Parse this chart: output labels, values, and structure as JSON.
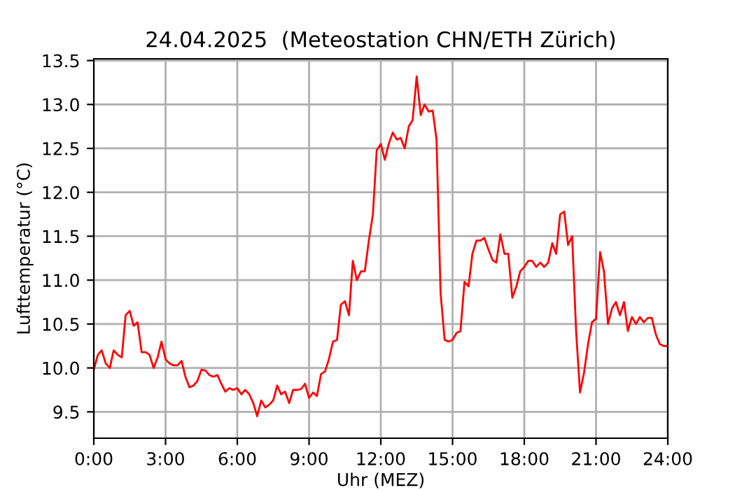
{
  "chart_data": {
    "type": "line",
    "title": "24.04.2025  (Meteostation CHN/ETH Zürich)",
    "xlabel": "Uhr (MEZ)",
    "ylabel": "Lufttemperatur (°C)",
    "x": [
      0,
      0.17,
      0.33,
      0.5,
      0.67,
      0.83,
      1,
      1.17,
      1.33,
      1.5,
      1.67,
      1.83,
      2,
      2.17,
      2.33,
      2.5,
      2.67,
      2.83,
      3,
      3.17,
      3.33,
      3.5,
      3.67,
      3.83,
      4,
      4.17,
      4.33,
      4.5,
      4.67,
      4.83,
      5,
      5.17,
      5.33,
      5.5,
      5.67,
      5.83,
      6,
      6.17,
      6.33,
      6.5,
      6.67,
      6.83,
      7,
      7.17,
      7.33,
      7.5,
      7.67,
      7.83,
      8,
      8.17,
      8.33,
      8.5,
      8.67,
      8.83,
      9,
      9.17,
      9.33,
      9.5,
      9.67,
      9.83,
      10,
      10.17,
      10.33,
      10.5,
      10.67,
      10.83,
      11,
      11.17,
      11.33,
      11.5,
      11.67,
      11.83,
      12,
      12.17,
      12.33,
      12.5,
      12.67,
      12.83,
      13,
      13.17,
      13.33,
      13.5,
      13.67,
      13.83,
      14,
      14.17,
      14.33,
      14.5,
      14.67,
      14.83,
      15,
      15.17,
      15.33,
      15.5,
      15.67,
      15.83,
      16,
      16.17,
      16.33,
      16.5,
      16.67,
      16.83,
      17,
      17.17,
      17.33,
      17.5,
      17.67,
      17.83,
      18,
      18.17,
      18.33,
      18.5,
      18.67,
      18.83,
      19,
      19.17,
      19.33,
      19.5,
      19.67,
      19.83,
      20,
      20.17,
      20.33,
      20.5,
      20.67,
      20.83,
      21,
      21.17,
      21.33,
      21.5,
      21.67,
      21.83,
      22,
      22.17,
      22.33,
      22.5,
      22.67,
      22.83,
      23,
      23.17,
      23.33,
      23.5,
      23.67,
      23.83,
      24
    ],
    "series": [
      {
        "color": "#ff0000",
        "values": [
          9.98,
          10.15,
          10.2,
          10.05,
          10.0,
          10.2,
          10.15,
          10.12,
          10.6,
          10.65,
          10.48,
          10.52,
          10.18,
          10.18,
          10.15,
          10.0,
          10.12,
          10.3,
          10.1,
          10.05,
          10.03,
          10.03,
          10.08,
          9.9,
          9.78,
          9.8,
          9.85,
          9.98,
          9.97,
          9.92,
          9.9,
          9.92,
          9.82,
          9.73,
          9.77,
          9.75,
          9.77,
          9.7,
          9.75,
          9.7,
          9.6,
          9.45,
          9.63,
          9.55,
          9.58,
          9.63,
          9.8,
          9.7,
          9.73,
          9.6,
          9.75,
          9.75,
          9.76,
          9.82,
          9.66,
          9.72,
          9.68,
          9.93,
          9.96,
          10.1,
          10.3,
          10.32,
          10.72,
          10.76,
          10.6,
          11.22,
          11.0,
          11.1,
          11.1,
          11.45,
          11.75,
          12.48,
          12.55,
          12.37,
          12.55,
          12.68,
          12.6,
          12.62,
          12.5,
          12.75,
          12.82,
          13.32,
          12.88,
          13.0,
          12.92,
          12.93,
          12.6,
          10.85,
          10.32,
          10.3,
          10.32,
          10.4,
          10.42,
          10.98,
          10.93,
          11.3,
          11.45,
          11.45,
          11.48,
          11.35,
          11.23,
          11.2,
          11.52,
          11.3,
          11.3,
          10.8,
          10.93,
          11.1,
          11.15,
          11.22,
          11.22,
          11.15,
          11.2,
          11.15,
          11.2,
          11.42,
          11.3,
          11.75,
          11.78,
          11.4,
          11.5,
          10.4,
          9.72,
          9.95,
          10.28,
          10.52,
          10.56,
          11.32,
          11.1,
          10.5,
          10.68,
          10.75,
          10.6,
          10.75,
          10.42,
          10.58,
          10.5,
          10.58,
          10.52,
          10.57,
          10.57,
          10.38,
          10.27,
          10.25,
          10.25
        ]
      }
    ],
    "xlim": [
      0,
      24
    ],
    "ylim": [
      9.2,
      13.52
    ],
    "xticks": [
      {
        "value": 0,
        "label": "0:00"
      },
      {
        "value": 3,
        "label": "3:00"
      },
      {
        "value": 6,
        "label": "6:00"
      },
      {
        "value": 9,
        "label": "9:00"
      },
      {
        "value": 12,
        "label": "12:00"
      },
      {
        "value": 15,
        "label": "15:00"
      },
      {
        "value": 18,
        "label": "18:00"
      },
      {
        "value": 21,
        "label": "21:00"
      },
      {
        "value": 24,
        "label": "24:00"
      }
    ],
    "yticks": [
      {
        "value": 9.5,
        "label": "9.5"
      },
      {
        "value": 10,
        "label": "10.0"
      },
      {
        "value": 10.5,
        "label": "10.5"
      },
      {
        "value": 11,
        "label": "11.0"
      },
      {
        "value": 11.5,
        "label": "11.5"
      },
      {
        "value": 12,
        "label": "12.0"
      },
      {
        "value": 12.5,
        "label": "12.5"
      },
      {
        "value": 13,
        "label": "13.0"
      },
      {
        "value": 13.5,
        "label": "13.5"
      }
    ],
    "grid": true
  }
}
